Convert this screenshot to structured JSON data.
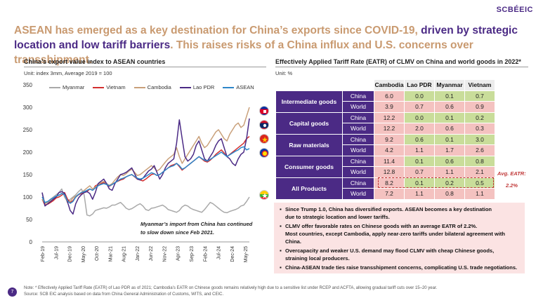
{
  "brand": "SCBÉEIC",
  "headline": {
    "part1": "ASEAN has emerged as a key destination for China’s exports since COVID-19, ",
    "part2": "driven by strategic location and low tariff barriers",
    "part3": ". This raises risks of a China influx and U.S. concerns over transshipment."
  },
  "left_title": "China’s export value index to ASEAN countries",
  "left_unit": "Unit: index 3mm, Average 2019 = 100",
  "right_title": "Effectively Applied Tariff Rate (EATR) of CLMV on China and world goods in 2022*",
  "right_unit": "Unit: %",
  "annotation": {
    "line1": "Myanmar’s import from China has continued",
    "line2": "to slow down since Feb 2021."
  },
  "colors": {
    "myanmar": "#a9a9a9",
    "vietnam": "#d32f2f",
    "cambodia": "#c9a07a",
    "laos": "#4b2a85",
    "asean": "#2e86c9",
    "pink": "#f4c2c0",
    "green": "#c9dd9a",
    "purple": "#4b2a85"
  },
  "chart_data": {
    "type": "line",
    "title": "China’s export value index to ASEAN countries",
    "ylabel": "Unit: index 3mm, Average 2019 = 100",
    "ylim": [
      0,
      350
    ],
    "yticks": [
      0,
      50,
      100,
      150,
      200,
      250,
      300,
      350
    ],
    "x_tick_labels": [
      "Feb-19",
      "Jul-19",
      "Dec-19",
      "May-20",
      "Oct-20",
      "Mar-21",
      "Aug-21",
      "Jan-22",
      "Jun-22",
      "Nov-22",
      "Apr-23",
      "Sep-23",
      "Feb-24",
      "Jul-24",
      "Dec-24",
      "May-25"
    ],
    "legend": [
      "Myanmar",
      "Vietnam",
      "Cambodia",
      "Lao PDR",
      "ASEAN"
    ],
    "legend_position": "top",
    "series": [
      {
        "name": "Myanmar",
        "values": [
          110,
          85,
          90,
          95,
          100,
          105,
          110,
          118,
          100,
          90,
          95,
          100,
          105,
          112,
          118,
          105,
          60,
          58,
          62,
          70,
          72,
          74,
          76,
          75,
          78,
          82,
          82,
          85,
          88,
          82,
          75,
          72,
          74,
          78,
          82,
          85,
          80,
          72,
          70,
          75,
          76,
          78,
          80,
          82,
          78,
          72,
          70,
          68,
          66,
          70,
          78,
          82,
          80,
          75,
          72,
          70,
          68,
          66,
          72,
          80,
          88,
          85,
          80,
          75,
          70,
          66,
          65,
          68,
          70,
          72,
          75,
          80,
          82,
          90,
          100
        ]
      },
      {
        "name": "Vietnam",
        "values": [
          95,
          82,
          84,
          88,
          92,
          98,
          100,
          104,
          110,
          96,
          88,
          92,
          100,
          105,
          108,
          110,
          112,
          118,
          115,
          125,
          128,
          130,
          132,
          128,
          124,
          128,
          132,
          135,
          138,
          140,
          145,
          148,
          150,
          145,
          140,
          138,
          136,
          140,
          145,
          150,
          152,
          148,
          150,
          155,
          160,
          165,
          170,
          172,
          175,
          168,
          160,
          165,
          170,
          175,
          180,
          185,
          190,
          185,
          180,
          178,
          182,
          188,
          195,
          200,
          205,
          198,
          190,
          195,
          200,
          205,
          210,
          215,
          220,
          230,
          235
        ]
      },
      {
        "name": "Cambodia",
        "values": [
          95,
          85,
          88,
          92,
          96,
          100,
          104,
          108,
          106,
          88,
          90,
          98,
          102,
          106,
          110,
          115,
          120,
          125,
          118,
          122,
          128,
          132,
          135,
          130,
          126,
          130,
          138,
          145,
          150,
          148,
          152,
          158,
          162,
          155,
          148,
          150,
          155,
          160,
          165,
          170,
          165,
          158,
          162,
          170,
          178,
          185,
          190,
          195,
          210,
          190,
          175,
          185,
          195,
          205,
          215,
          225,
          235,
          220,
          210,
          215,
          225,
          235,
          245,
          250,
          240,
          230,
          225,
          240,
          250,
          260,
          265,
          255,
          260,
          280,
          300
        ]
      },
      {
        "name": "Lao PDR",
        "values": [
          110,
          80,
          85,
          90,
          95,
          100,
          110,
          112,
          108,
          90,
          70,
          62,
          85,
          98,
          105,
          110,
          112,
          108,
          95,
          110,
          130,
          135,
          140,
          130,
          118,
          115,
          130,
          140,
          150,
          152,
          155,
          160,
          165,
          152,
          140,
          138,
          142,
          150,
          158,
          162,
          170,
          155,
          140,
          150,
          165,
          175,
          180,
          185,
          220,
          272,
          230,
          190,
          180,
          185,
          195,
          215,
          225,
          205,
          185,
          180,
          190,
          200,
          215,
          225,
          230,
          210,
          190,
          185,
          175,
          170,
          185,
          195,
          200,
          230,
          275
        ]
      },
      {
        "name": "ASEAN",
        "values": [
          100,
          88,
          90,
          95,
          98,
          102,
          104,
          108,
          105,
          92,
          86,
          90,
          100,
          106,
          110,
          112,
          115,
          118,
          115,
          120,
          125,
          128,
          130,
          128,
          125,
          128,
          132,
          136,
          140,
          142,
          145,
          148,
          150,
          146,
          142,
          140,
          142,
          146,
          150,
          154,
          152,
          148,
          150,
          155,
          160,
          165,
          168,
          170,
          175,
          170,
          162,
          165,
          170,
          175,
          180,
          185,
          190,
          186,
          182,
          180,
          184,
          188,
          192,
          196,
          200,
          195,
          190,
          194,
          198,
          202,
          205,
          210,
          212,
          205,
          208
        ]
      }
    ]
  },
  "table": {
    "columns": [
      "Cambodia",
      "Lao PDR",
      "Myanmar",
      "Vietnam"
    ],
    "groups": [
      {
        "label": "Intermediate goods",
        "rows": [
          {
            "country": "China",
            "values": [
              "6.0",
              "0.0",
              "0.1",
              "0.7"
            ]
          },
          {
            "country": "World",
            "values": [
              "3.9",
              "0.7",
              "0.6",
              "0.9"
            ]
          }
        ]
      },
      {
        "label": "Capital goods",
        "rows": [
          {
            "country": "China",
            "values": [
              "12.2",
              "0.0",
              "0.1",
              "0.2"
            ]
          },
          {
            "country": "World",
            "values": [
              "12.2",
              "2.0",
              "0.6",
              "0.3"
            ]
          }
        ]
      },
      {
        "label": "Raw materials",
        "rows": [
          {
            "country": "China",
            "values": [
              "9.2",
              "0.6",
              "0.1",
              "3.0"
            ]
          },
          {
            "country": "World",
            "values": [
              "4.2",
              "1.1",
              "1.7",
              "2.6"
            ]
          }
        ]
      },
      {
        "label": "Consumer goods",
        "rows": [
          {
            "country": "China",
            "values": [
              "11.4",
              "0.1",
              "0.6",
              "0.8"
            ]
          },
          {
            "country": "World",
            "values": [
              "12.8",
              "0.7",
              "1.1",
              "2.1"
            ]
          }
        ]
      },
      {
        "label": "All Products",
        "rows": [
          {
            "country": "China",
            "values": [
              "8.2",
              "0.1",
              "0.2",
              "0.5"
            ]
          },
          {
            "country": "World",
            "values": [
              "7.2",
              "1.1",
              "0.8",
              "1.1"
            ]
          }
        ]
      }
    ]
  },
  "avg_eatr": {
    "line1": "Avg. EATR:",
    "line2": "2.2%"
  },
  "bullets": [
    {
      "main": "Since Trump 1.0, China has diversified exports. ASEAN becomes a key destination",
      "sub": "due to strategic location and lower tariffs."
    },
    {
      "main": "CLMV offer favorable rates on Chinese goods with an average EATR of 2.2%.",
      "sub": "Most countries, except Cambodia, apply near-zero tariffs under bilateral agreement with China."
    },
    {
      "main": "Overcapacity and weaker U.S. demand may flood CLMV with cheap Chinese goods,",
      "sub": "straining local producers."
    },
    {
      "main": "China-ASEAN trade ties raise transshipment concerns, complicating U.S. trade negotiations.",
      "sub": ""
    }
  ],
  "page_number": "7",
  "footnote1": "Note: * Effectively Applied Tariff Rate (EATR) of Lao PDR as of 2021; Cambodia’s EATR on Chinese goods remains relatively high due to a sensitive list under RCEP and ACFTA, allowing gradual tariff cuts over 15–20 year.",
  "footnote2": "Source: SCB EIC analysis based on data from China General Administration of Customs, WITS, and CEIC."
}
